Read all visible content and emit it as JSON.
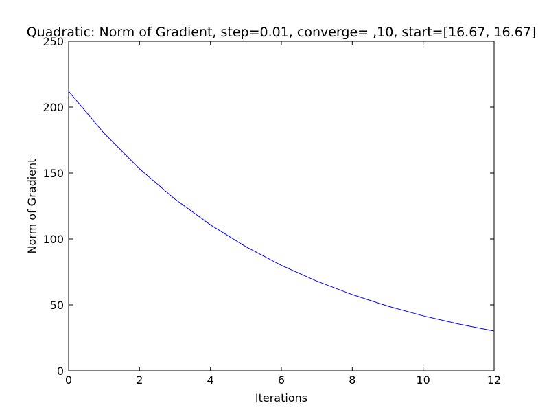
{
  "chart_data": {
    "type": "line",
    "title": "Quadratic: Norm of Gradient, step=0.01, converge= ,10, start=[16.67, 16.67]",
    "xlabel": "Iterations",
    "ylabel": "Norm of Gradient",
    "xlim": [
      0,
      12
    ],
    "ylim": [
      0,
      250
    ],
    "xticks": [
      "0",
      "2",
      "4",
      "6",
      "8",
      "10",
      "12"
    ],
    "yticks": [
      "0",
      "50",
      "100",
      "150",
      "200",
      "250"
    ],
    "grid": false,
    "series": [
      {
        "color": "#0000ff",
        "x": [
          0,
          1,
          2,
          3,
          4,
          5,
          6,
          7,
          8,
          9,
          10,
          11,
          12
        ],
        "y": [
          212,
          180.2,
          153.2,
          130.2,
          110.7,
          94.1,
          80.0,
          68.0,
          57.8,
          49.1,
          41.7,
          35.5,
          30.2
        ]
      }
    ]
  }
}
